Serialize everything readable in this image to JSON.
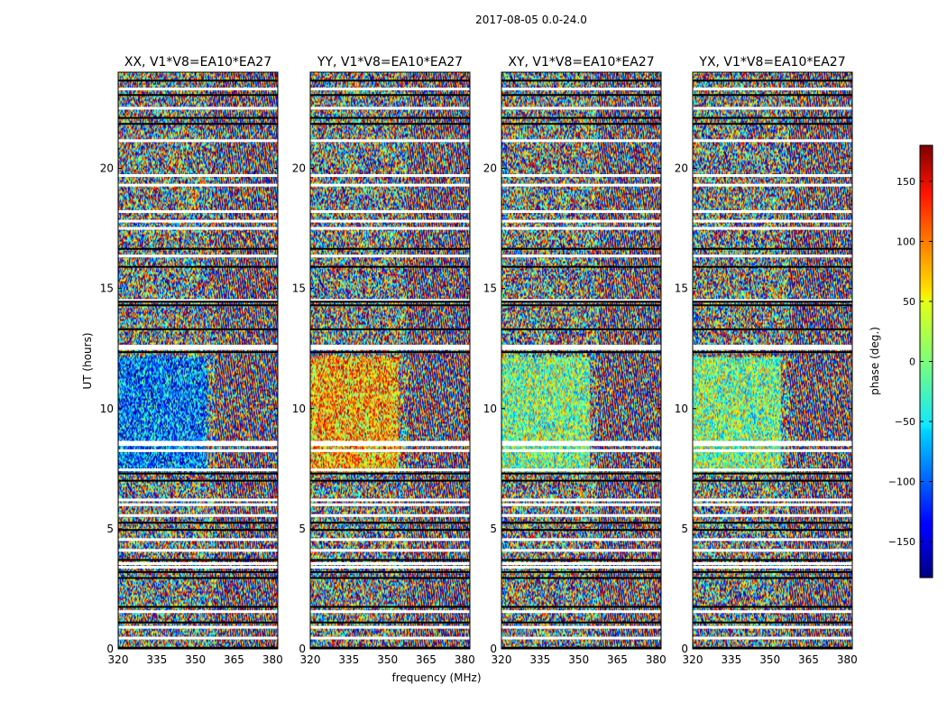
{
  "figure": {
    "suptitle": "2017-08-05 0.0-24.0"
  },
  "chart_data": {
    "type": "heatmap",
    "description_of_fill": "pseudo-random phase noise; horizontal white/black flagged bands",
    "panels": [
      {
        "title": "XX, V1*V8=EA10*EA27",
        "pol": "XX"
      },
      {
        "title": "YY, V1*V8=EA10*EA27",
        "pol": "YY"
      },
      {
        "title": "XY, V1*V8=EA10*EA27",
        "pol": "XY"
      },
      {
        "title": "YX, V1*V8=EA10*EA27",
        "pol": "YX"
      }
    ],
    "xlabel": "frequency (MHz)",
    "ylabel": "UT (hours)",
    "xlim": [
      320,
      382
    ],
    "ylim": [
      0,
      24
    ],
    "xticks": [
      320,
      335,
      350,
      365,
      380
    ],
    "yticks": [
      0,
      5,
      10,
      15,
      20
    ],
    "colorbar": {
      "label": "phase (deg.)",
      "range": [
        -180,
        180
      ],
      "ticks": [
        -150,
        -100,
        -50,
        0,
        50,
        100,
        150
      ],
      "ticklabels": [
        "−150",
        "−100",
        "−50",
        "0",
        "50",
        "100",
        "150"
      ],
      "colormap": "jet"
    },
    "flagged_hours_white": [
      0.45,
      0.9,
      1.55,
      3.4,
      3.55,
      4.1,
      4.55,
      5.55,
      6.0,
      6.2,
      7.45,
      8.25,
      8.5,
      8.6,
      12.5,
      12.6,
      14.5,
      16.35,
      17.5,
      17.8,
      18.2,
      19.3,
      19.7,
      21.15,
      22.5,
      23.3
    ],
    "flagged_hours_black": [
      0.05,
      1.1,
      1.75,
      2.95,
      3.2,
      3.7,
      4.95,
      5.25,
      7.0,
      7.3,
      12.35,
      13.3,
      14.3,
      14.45,
      15.9,
      16.65,
      21.85,
      22.1,
      23.05,
      23.65
    ]
  }
}
